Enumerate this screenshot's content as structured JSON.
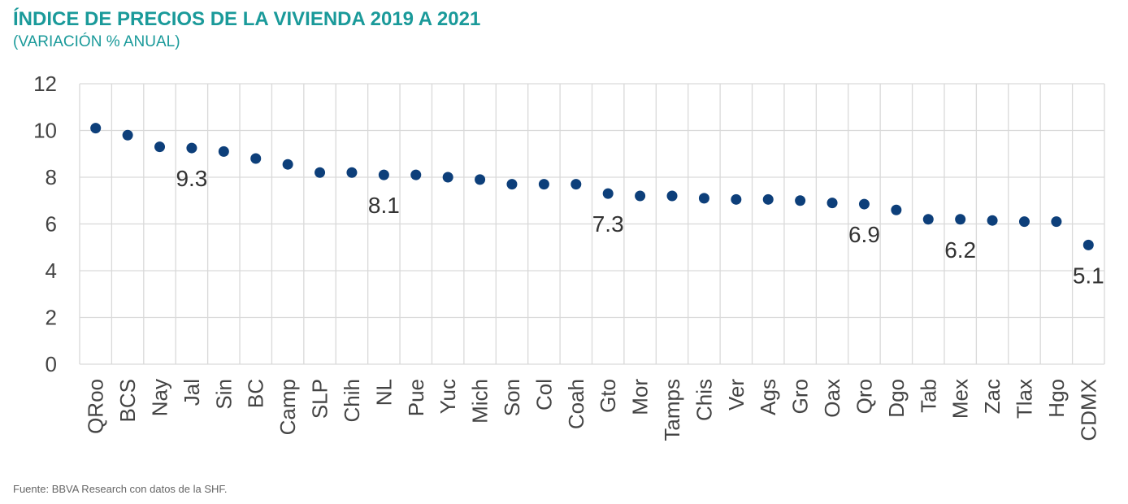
{
  "header": {
    "title": "ÍNDICE DE PRECIOS DE LA VIVIENDA 2019 A 2021",
    "subtitle": "(VARIACIÓN % ANUAL)"
  },
  "footer": {
    "source": "Fuente: BBVA Research con datos de la SHF."
  },
  "colors": {
    "title": "#1a9a9a",
    "point": "#0d3f7a",
    "grid": "#d9d9d9"
  },
  "chart_data": {
    "type": "scatter",
    "title": "ÍNDICE DE PRECIOS DE LA VIVIENDA 2019 A 2021",
    "subtitle": "(VARIACIÓN % ANUAL)",
    "categories": [
      "QRoo",
      "BCS",
      "Nay",
      "Jal",
      "Sin",
      "BC",
      "Camp",
      "SLP",
      "Chih",
      "NL",
      "Pue",
      "Yuc",
      "Mich",
      "Son",
      "Col",
      "Coah",
      "Gto",
      "Mor",
      "Tamps",
      "Chis",
      "Ver",
      "Ags",
      "Gro",
      "Oax",
      "Qro",
      "Dgo",
      "Tab",
      "Mex",
      "Zac",
      "Tlax",
      "Hgo",
      "CDMX"
    ],
    "values": [
      10.1,
      9.8,
      9.3,
      9.25,
      9.1,
      8.8,
      8.55,
      8.2,
      8.2,
      8.1,
      8.1,
      8.0,
      7.9,
      7.7,
      7.7,
      7.7,
      7.3,
      7.2,
      7.2,
      7.1,
      7.05,
      7.05,
      7.0,
      6.9,
      6.85,
      6.6,
      6.2,
      6.2,
      6.15,
      6.1,
      6.1,
      5.1
    ],
    "ylim": [
      0,
      12
    ],
    "yticks": [
      "0",
      "2",
      "4",
      "6",
      "8",
      "10",
      "12"
    ],
    "grid": true,
    "legend": "none",
    "annotations": [
      {
        "category": "Jal",
        "label": "9.3"
      },
      {
        "category": "NL",
        "label": "8.1"
      },
      {
        "category": "Gto",
        "label": "7.3"
      },
      {
        "category": "Qro",
        "label": "6.9"
      },
      {
        "category": "Mex",
        "label": "6.2"
      },
      {
        "category": "CDMX",
        "label": "5.1"
      }
    ]
  }
}
